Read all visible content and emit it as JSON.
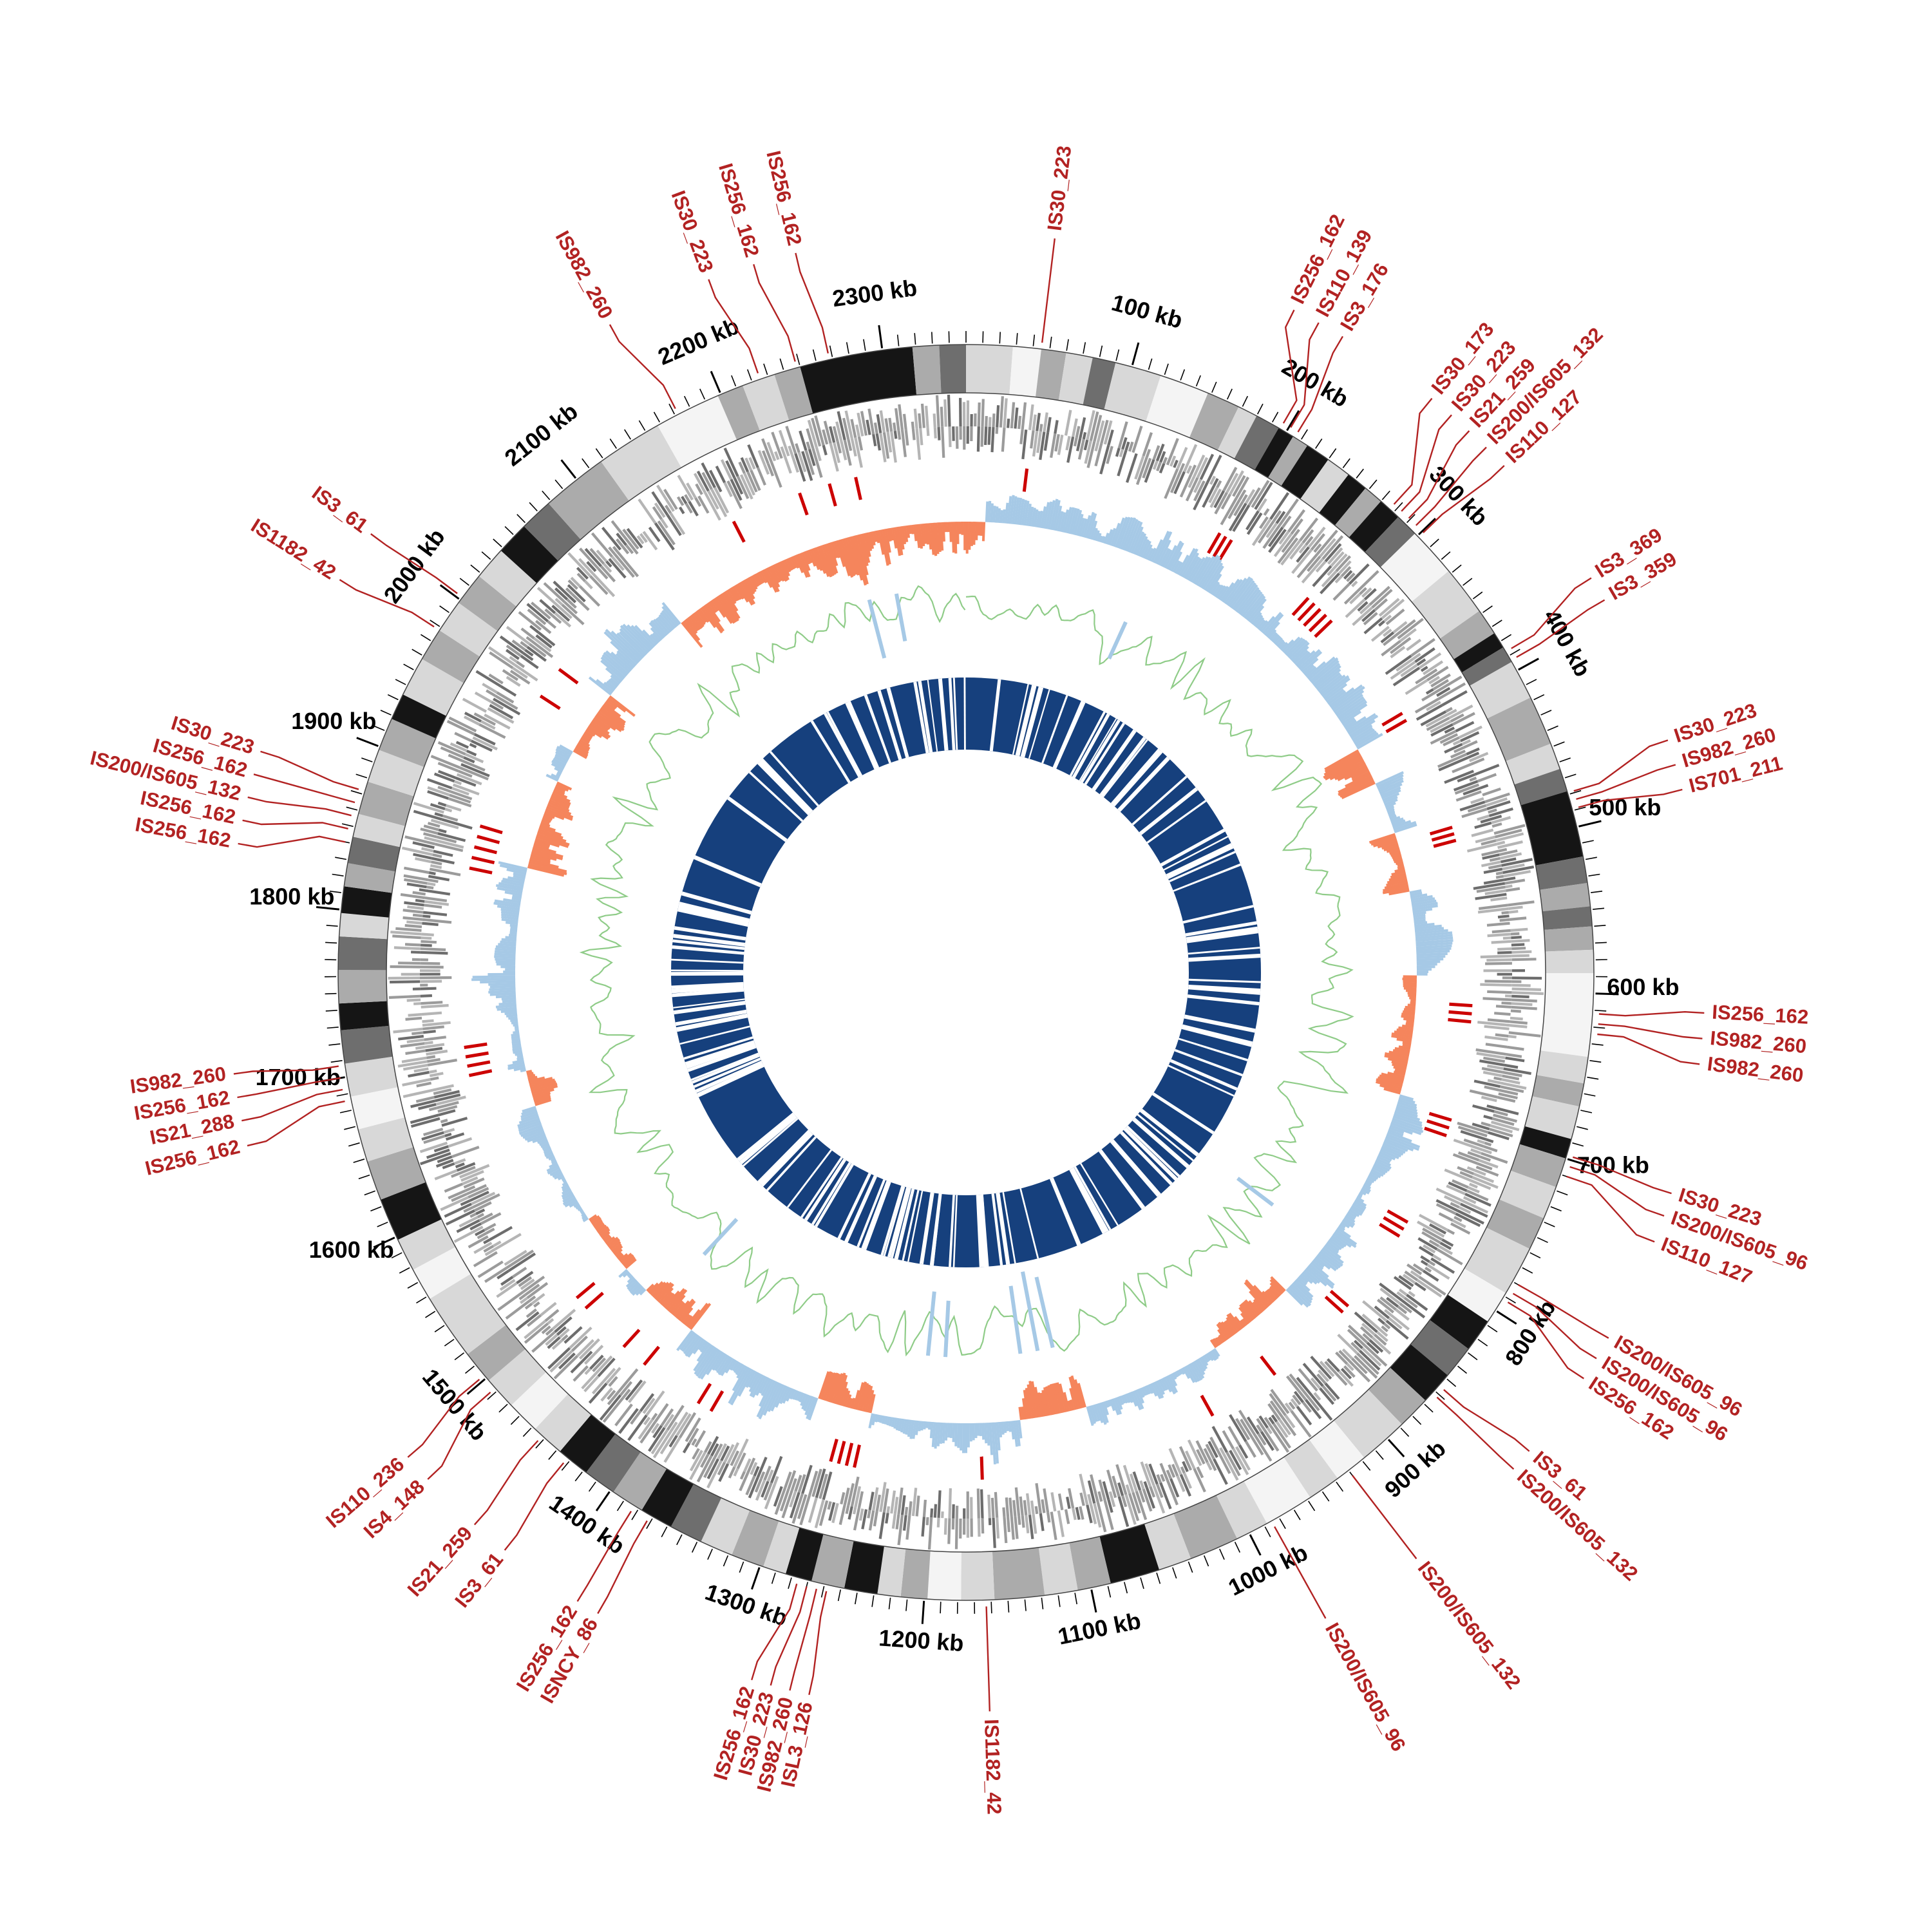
{
  "page": {
    "background": "#ffffff"
  },
  "chart_data": {
    "type": "circular-genome-map",
    "genome_length_kb": 2350,
    "axis": {
      "unit": "kb",
      "major_tick_kb": 100,
      "minor_tick_kb": 10,
      "tick_labels": [
        "100 kb",
        "200 kb",
        "300 kb",
        "400 kb",
        "500 kb",
        "600 kb",
        "700 kb",
        "800 kb",
        "900 kb",
        "1000 kb",
        "1100 kb",
        "1200 kb",
        "1300 kb",
        "1400 kb",
        "1500 kb",
        "1600 kb",
        "1700 kb",
        "1800 kb",
        "1900 kb",
        "2000 kb",
        "2100 kb",
        "2200 kb",
        "2300 kb"
      ]
    },
    "tracks": [
      {
        "id": "gc-heat-ring",
        "desc": "Outer grayscale heat ring (GC/feature density classes)",
        "shades": [
          "#f4f4f4",
          "#d8d8d8",
          "#ababab",
          "#6e6e6e",
          "#151515"
        ]
      },
      {
        "id": "cds-track",
        "desc": "Gray CDS marks, forward (outward) and reverse (inward) strand",
        "colors": [
          "#6d6d6d",
          "#9b9b9b",
          "#b5b5b5"
        ]
      },
      {
        "id": "is-site-ticks",
        "desc": "Red ticks marking IS element insertion sites",
        "color": "#cc0000"
      },
      {
        "id": "gc-skew",
        "desc": "GC skew histogram: positive outward (blue), negative inward (orange)",
        "pos_color": "#a6c9e6",
        "neg_color": "#f5855c"
      },
      {
        "id": "gc-deviation",
        "desc": "GC content deviation line (green) with light-blue inward spikes",
        "color": "#8fcc88",
        "spike_color": "#a6c9e6"
      },
      {
        "id": "core-ring",
        "desc": "Navy alignment/core-genome ring with white gaps",
        "color": "#16407d"
      }
    ],
    "colors": {
      "label_red": "#b22222",
      "is_tick": "#cc0000",
      "skew_pos": "#a6c9e6",
      "skew_neg": "#f5855c",
      "gc_line": "#8fcc88",
      "core": "#16407d",
      "axis": "#000000"
    },
    "is_annotations": [
      {
        "label": "IS30_223",
        "kb": 45,
        "label_kb": 45
      },
      {
        "label": "IS256_162",
        "kb": 196,
        "label_kb": 172
      },
      {
        "label": "IS110_139",
        "kb": 201,
        "label_kb": 186
      },
      {
        "label": "IS3_176",
        "kb": 206,
        "label_kb": 200
      },
      {
        "label": "IS30_173",
        "kb": 277,
        "label_kb": 255
      },
      {
        "label": "IS30_223",
        "kb": 283,
        "label_kb": 268
      },
      {
        "label": "IS21_259",
        "kb": 289,
        "label_kb": 280
      },
      {
        "label": "IS200/IS605_132",
        "kb": 295,
        "label_kb": 292
      },
      {
        "label": "IS110_127",
        "kb": 301,
        "label_kb": 305
      },
      {
        "label": "IS3_369",
        "kb": 387,
        "label_kb": 377
      },
      {
        "label": "IS3_359",
        "kb": 393,
        "label_kb": 390
      },
      {
        "label": "IS30_223",
        "kb": 479,
        "label_kb": 468
      },
      {
        "label": "IS982_260",
        "kb": 484,
        "label_kb": 481
      },
      {
        "label": "IS701_211",
        "kb": 489,
        "label_kb": 494
      },
      {
        "label": "IS256_162",
        "kb": 612,
        "label_kb": 608
      },
      {
        "label": "IS982_260",
        "kb": 618,
        "label_kb": 621
      },
      {
        "label": "IS982_260",
        "kb": 624,
        "label_kb": 634
      },
      {
        "label": "IS30_223",
        "kb": 698,
        "label_kb": 701
      },
      {
        "label": "IS200/IS605_96",
        "kb": 704,
        "label_kb": 713
      },
      {
        "label": "IS110_127",
        "kb": 710,
        "label_kb": 727
      },
      {
        "label": "IS200/IS605_96",
        "kb": 780,
        "label_kb": 781
      },
      {
        "label": "IS200/IS605_96",
        "kb": 786,
        "label_kb": 793
      },
      {
        "label": "IS256_162",
        "kb": 792,
        "label_kb": 805
      },
      {
        "label": "IS3_61",
        "kb": 856,
        "label_kb": 851
      },
      {
        "label": "IS200/IS605_132",
        "kb": 862,
        "label_kb": 863
      },
      {
        "label": "IS200/IS605_132",
        "kb": 930,
        "label_kb": 930
      },
      {
        "label": "IS200/IS605_96",
        "kb": 985,
        "label_kb": 985
      },
      {
        "label": "IS1182_42",
        "kb": 1163,
        "label_kb": 1163
      },
      {
        "label": "ISL3_126",
        "kb": 1258,
        "label_kb": 1255
      },
      {
        "label": "IS982_260",
        "kb": 1264,
        "label_kb": 1265
      },
      {
        "label": "IS30_223",
        "kb": 1270,
        "label_kb": 1275
      },
      {
        "label": "IS256_162",
        "kb": 1276,
        "label_kb": 1285
      },
      {
        "label": "ISNCY_86",
        "kb": 1372,
        "label_kb": 1370
      },
      {
        "label": "IS256_162",
        "kb": 1383,
        "label_kb": 1382
      },
      {
        "label": "IS3_61",
        "kb": 1432,
        "label_kb": 1427
      },
      {
        "label": "IS21_259",
        "kb": 1452,
        "label_kb": 1447
      },
      {
        "label": "IS4_148",
        "kb": 1492,
        "label_kb": 1480
      },
      {
        "label": "IS110_236",
        "kb": 1502,
        "label_kb": 1495
      },
      {
        "label": "IS256_162",
        "kb": 1686,
        "label_kb": 1674
      },
      {
        "label": "IS21_288",
        "kb": 1693,
        "label_kb": 1687
      },
      {
        "label": "IS256_162",
        "kb": 1700,
        "label_kb": 1699
      },
      {
        "label": "IS982_260",
        "kb": 1707,
        "label_kb": 1711
      },
      {
        "label": "IS256_162",
        "kb": 1840,
        "label_kb": 1828
      },
      {
        "label": "IS256_162",
        "kb": 1848,
        "label_kb": 1840
      },
      {
        "label": "IS200/IS605_132",
        "kb": 1856,
        "label_kb": 1852
      },
      {
        "label": "IS256_162",
        "kb": 1864,
        "label_kb": 1864
      },
      {
        "label": "IS30_223",
        "kb": 1872,
        "label_kb": 1876
      },
      {
        "label": "IS1182_42",
        "kb": 1978,
        "label_kb": 1972
      },
      {
        "label": "IS3_61",
        "kb": 2002,
        "label_kb": 2000
      },
      {
        "label": "IS982_260",
        "kb": 2172,
        "label_kb": 2162
      },
      {
        "label": "IS30_223",
        "kb": 2225,
        "label_kb": 2217
      },
      {
        "label": "IS256_162",
        "kb": 2248,
        "label_kb": 2241
      },
      {
        "label": "IS256_162",
        "kb": 2268,
        "label_kb": 2263
      }
    ],
    "gc_ring_segments": [
      [
        0,
        28,
        1
      ],
      [
        28,
        45,
        0
      ],
      [
        45,
        60,
        2
      ],
      [
        60,
        76,
        1
      ],
      [
        76,
        90,
        3
      ],
      [
        90,
        118,
        1
      ],
      [
        118,
        148,
        0
      ],
      [
        148,
        168,
        2
      ],
      [
        168,
        180,
        1
      ],
      [
        180,
        195,
        3
      ],
      [
        195,
        205,
        4
      ],
      [
        205,
        215,
        2
      ],
      [
        215,
        230,
        4
      ],
      [
        230,
        245,
        1
      ],
      [
        245,
        258,
        4
      ],
      [
        258,
        270,
        2
      ],
      [
        270,
        284,
        4
      ],
      [
        284,
        298,
        3
      ],
      [
        298,
        328,
        0
      ],
      [
        328,
        358,
        1
      ],
      [
        358,
        374,
        2
      ],
      [
        374,
        384,
        4
      ],
      [
        384,
        394,
        3
      ],
      [
        394,
        418,
        1
      ],
      [
        418,
        448,
        2
      ],
      [
        448,
        464,
        1
      ],
      [
        464,
        478,
        3
      ],
      [
        478,
        518,
        4
      ],
      [
        518,
        534,
        3
      ],
      [
        534,
        548,
        2
      ],
      [
        548,
        560,
        3
      ],
      [
        560,
        574,
        2
      ],
      [
        574,
        588,
        1
      ],
      [
        588,
        638,
        0
      ],
      [
        638,
        654,
        1
      ],
      [
        654,
        668,
        2
      ],
      [
        668,
        688,
        1
      ],
      [
        688,
        700,
        4
      ],
      [
        700,
        718,
        2
      ],
      [
        718,
        738,
        1
      ],
      [
        738,
        758,
        2
      ],
      [
        758,
        788,
        1
      ],
      [
        788,
        808,
        0
      ],
      [
        808,
        828,
        4
      ],
      [
        828,
        848,
        3
      ],
      [
        848,
        868,
        4
      ],
      [
        868,
        888,
        2
      ],
      [
        888,
        918,
        1
      ],
      [
        918,
        938,
        0
      ],
      [
        938,
        958,
        1
      ],
      [
        958,
        988,
        0
      ],
      [
        988,
        1008,
        1
      ],
      [
        1008,
        1038,
        2
      ],
      [
        1038,
        1058,
        1
      ],
      [
        1058,
        1088,
        4
      ],
      [
        1088,
        1108,
        2
      ],
      [
        1108,
        1128,
        1
      ],
      [
        1128,
        1158,
        2
      ],
      [
        1158,
        1178,
        1
      ],
      [
        1178,
        1198,
        0
      ],
      [
        1198,
        1214,
        2
      ],
      [
        1214,
        1228,
        1
      ],
      [
        1228,
        1248,
        4
      ],
      [
        1248,
        1268,
        2
      ],
      [
        1268,
        1284,
        4
      ],
      [
        1284,
        1298,
        1
      ],
      [
        1298,
        1318,
        2
      ],
      [
        1318,
        1338,
        1
      ],
      [
        1338,
        1358,
        3
      ],
      [
        1358,
        1378,
        4
      ],
      [
        1378,
        1398,
        2
      ],
      [
        1398,
        1418,
        3
      ],
      [
        1418,
        1438,
        4
      ],
      [
        1438,
        1458,
        1
      ],
      [
        1458,
        1478,
        0
      ],
      [
        1478,
        1498,
        1
      ],
      [
        1498,
        1518,
        2
      ],
      [
        1518,
        1558,
        1
      ],
      [
        1558,
        1578,
        0
      ],
      [
        1578,
        1598,
        1
      ],
      [
        1598,
        1624,
        4
      ],
      [
        1624,
        1648,
        2
      ],
      [
        1648,
        1668,
        1
      ],
      [
        1668,
        1688,
        0
      ],
      [
        1688,
        1708,
        1
      ],
      [
        1708,
        1728,
        3
      ],
      [
        1728,
        1744,
        4
      ],
      [
        1744,
        1764,
        2
      ],
      [
        1764,
        1784,
        3
      ],
      [
        1784,
        1798,
        1
      ],
      [
        1798,
        1814,
        4
      ],
      [
        1814,
        1828,
        2
      ],
      [
        1828,
        1844,
        3
      ],
      [
        1844,
        1858,
        1
      ],
      [
        1858,
        1878,
        2
      ],
      [
        1878,
        1898,
        1
      ],
      [
        1898,
        1918,
        2
      ],
      [
        1918,
        1934,
        4
      ],
      [
        1934,
        1958,
        1
      ],
      [
        1958,
        1978,
        2
      ],
      [
        1978,
        1998,
        1
      ],
      [
        1998,
        2018,
        2
      ],
      [
        2018,
        2038,
        1
      ],
      [
        2038,
        2058,
        4
      ],
      [
        2058,
        2078,
        3
      ],
      [
        2078,
        2118,
        2
      ],
      [
        2118,
        2158,
        1
      ],
      [
        2158,
        2198,
        0
      ],
      [
        2198,
        2214,
        2
      ],
      [
        2214,
        2234,
        1
      ],
      [
        2234,
        2250,
        2
      ],
      [
        2250,
        2318,
        4
      ],
      [
        2318,
        2334,
        2
      ],
      [
        2334,
        2350,
        3
      ]
    ],
    "skew_negative_regions": [
      [
        0,
        15
      ],
      [
        395,
        425
      ],
      [
        470,
        520
      ],
      [
        590,
        690
      ],
      [
        880,
        955
      ],
      [
        1075,
        1130
      ],
      [
        1255,
        1300
      ],
      [
        1420,
        1470
      ],
      [
        1495,
        1545
      ],
      [
        1650,
        1680
      ],
      [
        1850,
        1925
      ],
      [
        1955,
        2010
      ],
      [
        2095,
        2350
      ]
    ],
    "inner_blue_spikes": [
      [
        160,
        0.5
      ],
      [
        830,
        0.55
      ],
      [
        1090,
        0.9
      ],
      [
        1105,
        1.0
      ],
      [
        1122,
        0.85
      ],
      [
        1195,
        0.7
      ],
      [
        1212,
        0.8
      ],
      [
        1455,
        0.6
      ],
      [
        2255,
        0.75
      ],
      [
        2282,
        0.6
      ]
    ],
    "core_ring_gaps": [
      [
        150,
        156
      ],
      [
        446,
        449
      ],
      [
        608,
        616
      ],
      [
        699,
        702
      ],
      [
        986,
        995
      ],
      [
        1146,
        1158
      ],
      [
        1216,
        1221
      ],
      [
        1262,
        1267
      ],
      [
        1330,
        1334
      ],
      [
        1638,
        1647
      ],
      [
        1793,
        1797
      ],
      [
        2060,
        2065
      ],
      [
        2218,
        2222
      ]
    ],
    "noise_seed": 11
  }
}
